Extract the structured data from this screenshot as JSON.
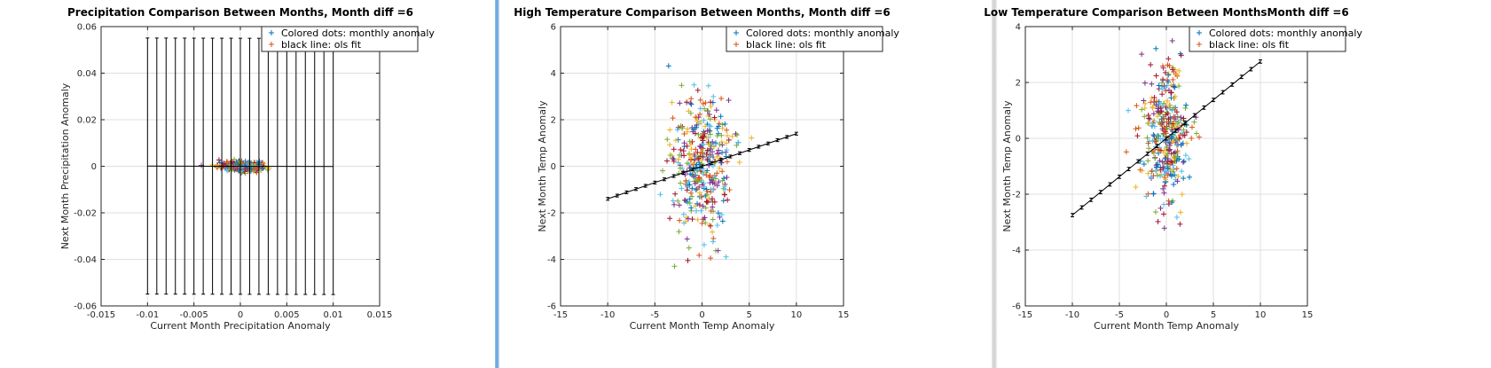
{
  "chart_data": [
    {
      "type": "scatter",
      "title": "Precipitation Comparison Between Months, Month diff =6",
      "xlabel": "Current Month Precipitation Anomaly",
      "ylabel": "Next Month Precipitation Anomaly",
      "xlim": [
        -0.015,
        0.015
      ],
      "ylim": [
        -0.06,
        0.06
      ],
      "xticks": [
        -0.015,
        -0.01,
        -0.005,
        0,
        0.005,
        0.01,
        0.015
      ],
      "yticks": [
        -0.06,
        -0.04,
        -0.02,
        0,
        0.02,
        0.04,
        0.06
      ],
      "xtick_labels": [
        "-0.015",
        "-0.01",
        "-0.005",
        "0",
        "0.005",
        "0.01",
        "0.015"
      ],
      "ytick_labels": [
        "-0.06",
        "-0.04",
        "-0.02",
        "0",
        "0.02",
        "0.04",
        "0.06"
      ],
      "grid": true,
      "legend_position": "top-right",
      "legend": [
        "Colored dots: monthly anomaly",
        "black line: ols fit"
      ],
      "fit_line": {
        "x_start": -0.01,
        "x_end": 0.01,
        "y_start": 0.0001,
        "y_end": -0.0001,
        "errorbar_half_height": 0.055,
        "errorbar_count": 21
      },
      "scatter_cloud": {
        "x_center": 0,
        "x_spread": 0.0012,
        "y_center": 0,
        "y_spread": 0.001,
        "count": 320
      }
    },
    {
      "type": "scatter",
      "title": "High Temperature Comparison Between Months, Month diff =6",
      "xlabel": "Current Month Temp Anomaly",
      "ylabel": "Next Month Temp Anomaly",
      "xlim": [
        -15,
        15
      ],
      "ylim": [
        -6,
        6
      ],
      "xticks": [
        -15,
        -10,
        -5,
        0,
        5,
        10,
        15
      ],
      "yticks": [
        -6,
        -4,
        -2,
        0,
        2,
        4,
        6
      ],
      "xtick_labels": [
        "-15",
        "-10",
        "-5",
        "0",
        "5",
        "10",
        "15"
      ],
      "ytick_labels": [
        "-6",
        "-4",
        "-2",
        "0",
        "2",
        "4",
        "6"
      ],
      "grid": true,
      "legend_position": "top-right",
      "legend": [
        "Colored dots: monthly anomaly",
        "black line: ols fit"
      ],
      "fit_line": {
        "x_start": -10,
        "x_end": 10,
        "y_start": -1.4,
        "y_end": 1.4,
        "errorbar_half_height": 0.06,
        "errorbar_count": 21
      },
      "scatter_cloud": {
        "x_center": 0,
        "x_spread": 1.6,
        "y_center": 0,
        "y_spread": 1.5,
        "count": 380
      }
    },
    {
      "type": "scatter",
      "title": "Low Temperature Comparison Between MonthsMonth diff =6",
      "xlabel": "Current Month Temp Anomaly",
      "ylabel": "Next Month Temp Anomaly",
      "xlim": [
        -15,
        15
      ],
      "ylim": [
        -6,
        4
      ],
      "xticks": [
        -15,
        -10,
        -5,
        0,
        5,
        10,
        15
      ],
      "yticks": [
        -6,
        -4,
        -2,
        0,
        2,
        4
      ],
      "xtick_labels": [
        "-15",
        "-10",
        "-5",
        "0",
        "5",
        "10",
        "15"
      ],
      "ytick_labels": [
        "-6",
        "-4",
        "-2",
        "0",
        "2",
        "4"
      ],
      "grid": true,
      "legend_position": "top-right",
      "legend": [
        "Colored dots: monthly anomaly",
        "black line: ols fit"
      ],
      "fit_line": {
        "x_start": -10,
        "x_end": 10,
        "y_start": -2.75,
        "y_end": 2.75,
        "errorbar_half_height": 0.06,
        "errorbar_count": 21
      },
      "scatter_cloud": {
        "x_center": 0,
        "x_spread": 1.2,
        "y_center": 0,
        "y_spread": 1.3,
        "count": 380
      }
    }
  ],
  "series_colors": [
    "#0072bd",
    "#d95319",
    "#edb120",
    "#7e2f8e",
    "#77ac30",
    "#4dbeee",
    "#a2142f"
  ],
  "colors": {
    "axis": "#262626",
    "grid": "#dfdfdf",
    "fit_line": "#000000",
    "panel_bg": "#ffffff",
    "window_bg": "#f0f0f0"
  }
}
